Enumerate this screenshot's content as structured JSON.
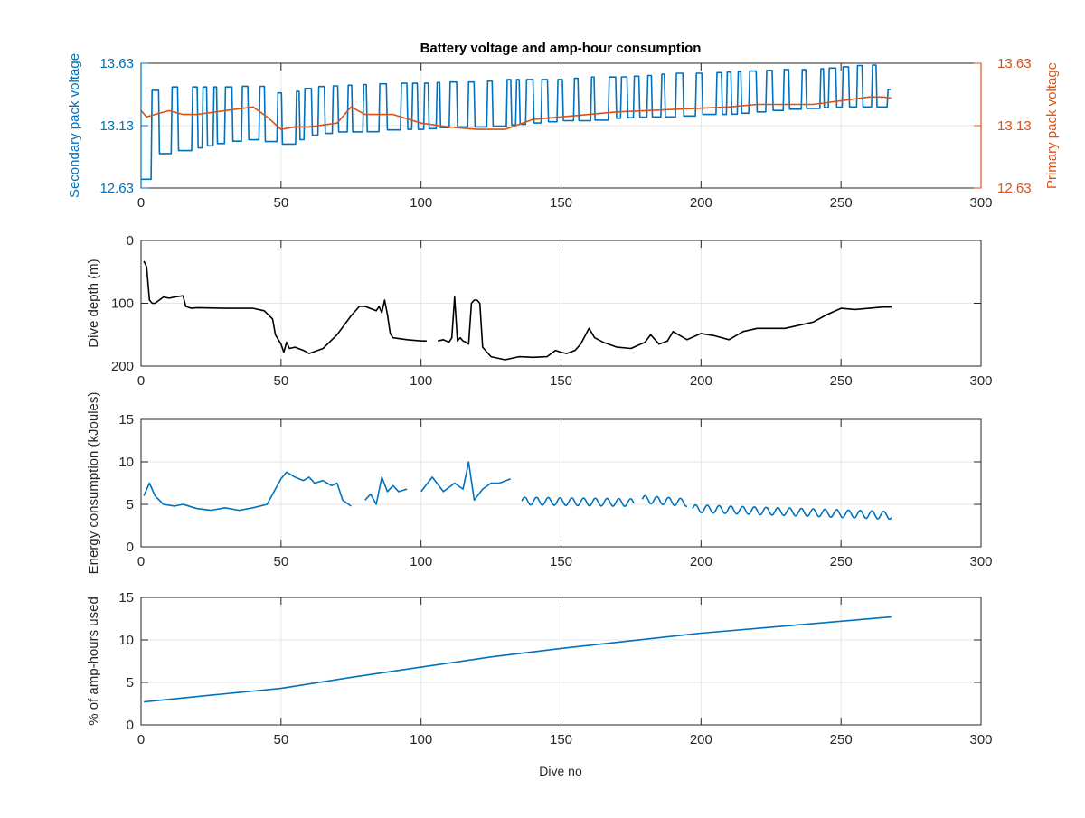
{
  "figure": {
    "title": "Battery voltage and amp-hour consumption",
    "xlabel": "Dive no"
  },
  "colors": {
    "blue": "#0072BD",
    "orange": "#D95319",
    "black": "#000000",
    "grid": "#e6e6e6",
    "axis": "#262626"
  },
  "chart_data": [
    {
      "type": "line",
      "title": "Battery voltage and amp-hour consumption",
      "xlabel": "",
      "xlim": [
        0,
        300
      ],
      "xticks": [
        0,
        50,
        100,
        150,
        200,
        250,
        300
      ],
      "y_left": {
        "label": "Secondary pack voltage",
        "lim": [
          12.63,
          13.63
        ],
        "ticks": [
          12.63,
          13.13,
          13.63
        ],
        "tick_labels": [
          "12.63",
          "13.13",
          "13.63"
        ]
      },
      "y_right": {
        "label": "Primary pack voltage",
        "lim": [
          12.63,
          13.63
        ],
        "ticks": [
          12.63,
          13.13,
          13.63
        ],
        "tick_labels": [
          "12.63",
          "13.13",
          "13.63"
        ]
      },
      "grid": true,
      "series": [
        {
          "axis": "left",
          "color": "blue",
          "style": "oscillating",
          "x": [
            0,
            1,
            2,
            5,
            10,
            20,
            30,
            40,
            45,
            50,
            55,
            60,
            70,
            80,
            90,
            100,
            110,
            120,
            130,
            140,
            150,
            160,
            170,
            180,
            190,
            200,
            210,
            220,
            230,
            240,
            250,
            260,
            265,
            268
          ],
          "low": [
            12.7,
            12.9,
            12.83,
            12.9,
            12.92,
            12.95,
            13.0,
            13.02,
            13.0,
            12.98,
            13.0,
            13.05,
            13.08,
            13.08,
            13.1,
            13.1,
            13.12,
            13.12,
            13.13,
            13.15,
            13.17,
            13.17,
            13.19,
            13.2,
            13.2,
            13.22,
            13.22,
            13.24,
            13.26,
            13.27,
            13.28,
            13.28,
            13.28,
            13.27
          ],
          "high": [
            13.2,
            13.5,
            13.4,
            13.42,
            13.44,
            13.44,
            13.44,
            13.45,
            13.44,
            13.38,
            13.4,
            13.44,
            13.45,
            13.46,
            13.47,
            13.47,
            13.48,
            13.48,
            13.5,
            13.5,
            13.5,
            13.52,
            13.52,
            13.53,
            13.55,
            13.55,
            13.56,
            13.57,
            13.58,
            13.58,
            13.6,
            13.62,
            13.6,
            13.3
          ]
        },
        {
          "axis": "right",
          "color": "orange",
          "style": "line",
          "x": [
            0,
            2,
            5,
            10,
            15,
            20,
            30,
            40,
            45,
            50,
            55,
            60,
            70,
            75,
            80,
            90,
            100,
            110,
            120,
            130,
            140,
            150,
            160,
            170,
            180,
            190,
            200,
            210,
            220,
            230,
            240,
            250,
            260,
            265,
            268
          ],
          "y": [
            13.25,
            13.2,
            13.22,
            13.25,
            13.22,
            13.22,
            13.25,
            13.28,
            13.2,
            13.1,
            13.12,
            13.12,
            13.15,
            13.28,
            13.22,
            13.22,
            13.15,
            13.12,
            13.1,
            13.1,
            13.18,
            13.2,
            13.22,
            13.24,
            13.25,
            13.26,
            13.27,
            13.28,
            13.3,
            13.3,
            13.3,
            13.33,
            13.36,
            13.36,
            13.35
          ]
        }
      ]
    },
    {
      "type": "line",
      "xlabel": "",
      "ylabel": "Dive depth (m)",
      "xlim": [
        0,
        300
      ],
      "xticks": [
        0,
        50,
        100,
        150,
        200,
        250,
        300
      ],
      "ylim": [
        0,
        200
      ],
      "yticks": [
        0,
        100,
        200
      ],
      "y_reversed": true,
      "grid": true,
      "series": [
        {
          "color": "black",
          "segments": [
            {
              "x": [
                1,
                2,
                3,
                4,
                5,
                8,
                10,
                12,
                15,
                16,
                18,
                20,
                30,
                40,
                44,
                47,
                48,
                50,
                51,
                52,
                53,
                55,
                58,
                60,
                65,
                70,
                75,
                78,
                80,
                84,
                85,
                86,
                87,
                88,
                89,
                90,
                95,
                100,
                102
              ],
              "y": [
                33,
                42,
                95,
                100,
                100,
                90,
                92,
                90,
                88,
                105,
                108,
                107,
                108,
                108,
                112,
                125,
                150,
                165,
                178,
                162,
                172,
                170,
                175,
                180,
                172,
                150,
                120,
                105,
                105,
                112,
                105,
                115,
                95,
                118,
                148,
                155,
                158,
                160,
                160
              ]
            },
            {
              "x": [
                106,
                108,
                110,
                111,
                112,
                113,
                114,
                115,
                116,
                117,
                118,
                119,
                120,
                121,
                122,
                125,
                130,
                135,
                140,
                145,
                148,
                150,
                152,
                155,
                157,
                160,
                162,
                165,
                170,
                175,
                180,
                182,
                185,
                188,
                190,
                195,
                200,
                205,
                210,
                215,
                220,
                230,
                240,
                245,
                250,
                255,
                260,
                265,
                268
              ],
              "y": [
                160,
                158,
                162,
                155,
                90,
                160,
                155,
                160,
                162,
                165,
                100,
                95,
                95,
                100,
                170,
                185,
                190,
                185,
                186,
                185,
                175,
                178,
                180,
                175,
                165,
                140,
                155,
                162,
                170,
                172,
                162,
                150,
                165,
                160,
                145,
                158,
                148,
                152,
                158,
                145,
                140,
                140,
                130,
                118,
                108,
                110,
                108,
                106,
                106
              ]
            }
          ]
        }
      ]
    },
    {
      "type": "line",
      "xlabel": "",
      "ylabel": "Energy consumption (kJoules)",
      "xlim": [
        0,
        300
      ],
      "xticks": [
        0,
        50,
        100,
        150,
        200,
        250,
        300
      ],
      "ylim": [
        0,
        15
      ],
      "yticks": [
        0,
        5,
        10,
        15
      ],
      "grid": true,
      "series": [
        {
          "color": "blue",
          "segments": [
            {
              "x": [
                1,
                3,
                5,
                8,
                12,
                15,
                20,
                25,
                30,
                35,
                40,
                45,
                50,
                52,
                55,
                58,
                60,
                62,
                65,
                68,
                70,
                72,
                75
              ],
              "y": [
                6,
                7.5,
                6,
                5,
                4.8,
                5,
                4.5,
                4.3,
                4.6,
                4.3,
                4.6,
                5,
                8,
                8.8,
                8.2,
                7.8,
                8.2,
                7.5,
                7.8,
                7.2,
                7.5,
                5.5,
                4.8
              ]
            },
            {
              "x": [
                80,
                82,
                84,
                86,
                88,
                90,
                92,
                95
              ],
              "y": [
                5.5,
                6.2,
                5,
                8.2,
                6.5,
                7.2,
                6.5,
                6.8
              ]
            },
            {
              "x": [
                100,
                104,
                108,
                112,
                115,
                117,
                119,
                122,
                125,
                128,
                132
              ],
              "y": [
                6.5,
                8.2,
                6.5,
                7.5,
                6.8,
                10,
                5.5,
                6.8,
                7.5,
                7.5,
                8
              ]
            }
          ]
        },
        {
          "color": "blue",
          "style": "wavy",
          "period": 4.2,
          "amplitude": 0.45,
          "segments": [
            {
              "x": [
                136,
                176
              ],
              "y": [
                5.4,
                5.2
              ]
            },
            {
              "x": [
                179,
                195
              ],
              "y": [
                5.6,
                5.2
              ]
            },
            {
              "x": [
                197,
                268
              ],
              "y": [
                4.5,
                3.7
              ]
            }
          ]
        }
      ]
    },
    {
      "type": "line",
      "xlabel": "Dive no",
      "ylabel": "% of amp-hours used",
      "xlim": [
        0,
        300
      ],
      "xticks": [
        0,
        50,
        100,
        150,
        200,
        250,
        300
      ],
      "ylim": [
        0,
        15
      ],
      "yticks": [
        0,
        5,
        10,
        15
      ],
      "grid": true,
      "series": [
        {
          "color": "blue",
          "x": [
            1,
            25,
            50,
            75,
            100,
            125,
            150,
            175,
            200,
            225,
            250,
            268
          ],
          "y": [
            2.7,
            3.5,
            4.3,
            5.6,
            6.8,
            8.0,
            9.0,
            9.9,
            10.8,
            11.5,
            12.2,
            12.7
          ]
        }
      ]
    }
  ]
}
